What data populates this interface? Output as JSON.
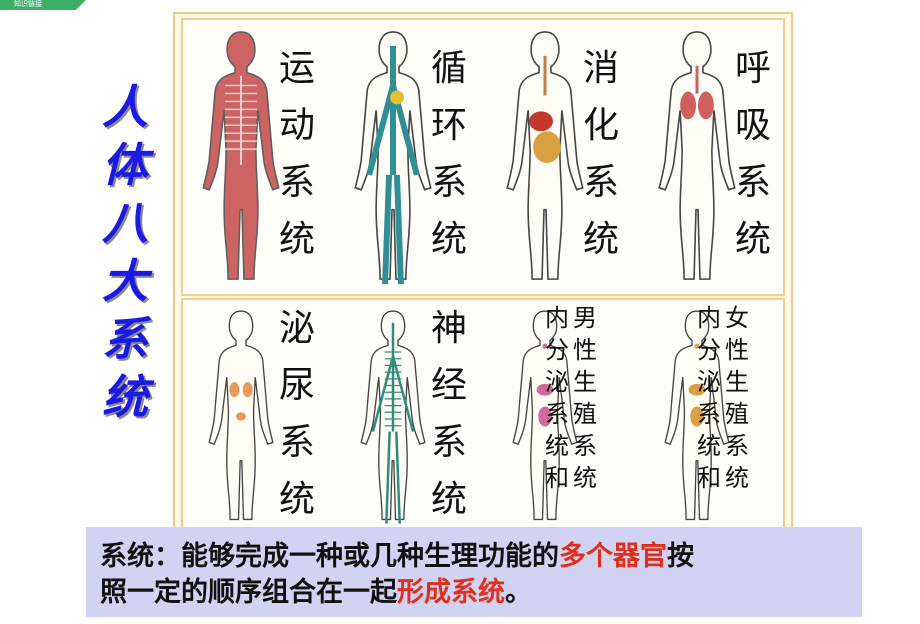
{
  "corner_tag": "知识链接",
  "vertical_title": [
    "人",
    "体",
    "八",
    "大",
    "系",
    "统"
  ],
  "systems_top": [
    {
      "label": [
        "运",
        "动",
        "系",
        "统"
      ],
      "color": "#c44a4a",
      "icon": "skeletal-muscle-figure"
    },
    {
      "label": [
        "循",
        "环",
        "系",
        "统"
      ],
      "color": "#2e8f94",
      "icon": "circulatory-figure"
    },
    {
      "label": [
        "消",
        "化",
        "系",
        "统"
      ],
      "color": "#c86b2a",
      "icon": "digestive-figure"
    },
    {
      "label": [
        "呼",
        "吸",
        "系",
        "统"
      ],
      "color": "#d06060",
      "icon": "respiratory-figure"
    }
  ],
  "systems_bottom": [
    {
      "label": [
        "泌",
        "尿",
        "系",
        "统"
      ],
      "color": "#e79a5a",
      "icon": "urinary-figure"
    },
    {
      "label": [
        "神",
        "经",
        "系",
        "统"
      ],
      "color": "#2f8e7a",
      "icon": "nervous-figure"
    },
    {
      "label_left": [
        "内",
        "分",
        "泌",
        "系",
        "统",
        "和"
      ],
      "label_right": [
        "男",
        "性",
        "生",
        "殖",
        "系",
        "统"
      ],
      "color": "#d06a9a",
      "icon": "male-reproductive-figure"
    },
    {
      "label_left": [
        "内",
        "分",
        "泌",
        "系",
        "统",
        "和"
      ],
      "label_right": [
        "女",
        "性",
        "生",
        "殖",
        "系",
        "统"
      ],
      "color": "#d8a040",
      "icon": "female-reproductive-figure"
    }
  ],
  "caption": {
    "line1_a": "系统：能够完成一种或几种生理功能的",
    "line1_b": "多个器官",
    "line1_c": "按",
    "line2_a": "照一定的顺序组合在一起",
    "line2_b": "形成系统",
    "line2_c": "。"
  }
}
